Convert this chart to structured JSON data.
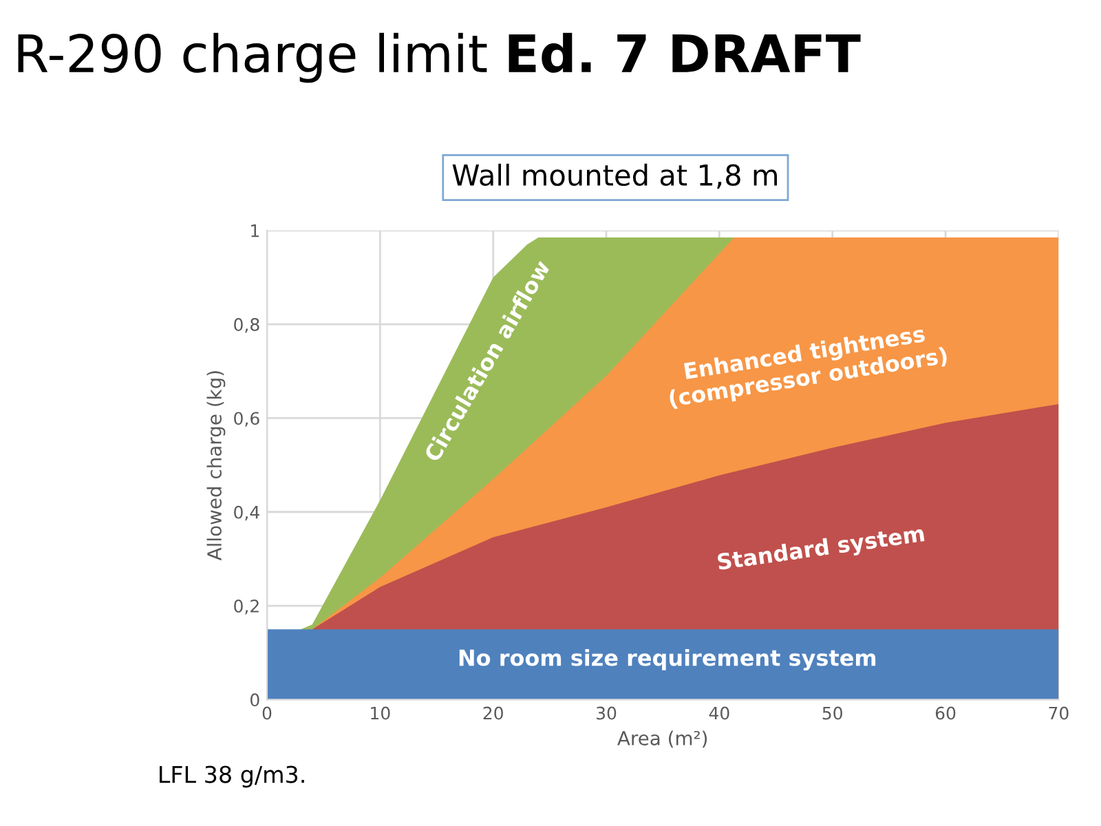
{
  "chart_data": {
    "type": "area",
    "title": "R-290 charge limit",
    "subtitle": "Ed. 7 DRAFT",
    "xlabel": "Area (m²)",
    "ylabel": "Allowed charge (kg)",
    "xlim": [
      0,
      70
    ],
    "xticks": [
      0,
      10,
      20,
      30,
      40,
      50,
      60,
      70
    ],
    "ylim": [
      0,
      1
    ],
    "yticks": [
      0,
      {
        "value": 0.2,
        "label": "0,2"
      },
      {
        "value": 0.4,
        "label": "0,4"
      },
      {
        "value": 0.6,
        "label": "0,6"
      },
      {
        "value": 0.8,
        "label": "0,8"
      },
      1
    ],
    "grid": true,
    "series": [
      {
        "name": "Circulation airflow",
        "color": "#9bbb59",
        "x": [
          3,
          4,
          10,
          20,
          23,
          24,
          41.3
        ],
        "values": [
          0.15,
          0.16,
          0.425,
          0.9,
          0.97,
          0.985,
          0.985
        ]
      },
      {
        "name": "Enhanced tightness\n(compressor outdoors)",
        "color": "#f79646",
        "x": [
          4,
          10,
          20,
          30,
          41.3,
          70
        ],
        "values": [
          0.15,
          0.26,
          0.47,
          0.69,
          0.985,
          0.985
        ]
      },
      {
        "name": "Standard system",
        "color": "#c0504d",
        "x": [
          4,
          10,
          20,
          30,
          40,
          50,
          60,
          70
        ],
        "values": [
          0.15,
          0.24,
          0.346,
          0.41,
          0.478,
          0.537,
          0.59,
          0.63
        ]
      },
      {
        "name": "No room size requirement system",
        "color": "#4f81bd",
        "x": [
          0,
          70
        ],
        "values": [
          0.15,
          0.15
        ]
      }
    ],
    "annotations": [
      "Wall mounted at 1,8 m",
      "LFL 38 g/m3."
    ]
  }
}
